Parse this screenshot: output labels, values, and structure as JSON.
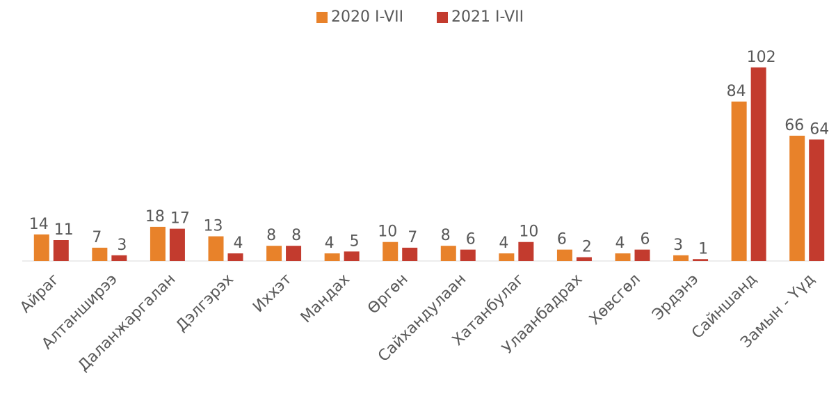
{
  "chart_data": {
    "type": "bar",
    "categories": [
      "Айраг",
      "Алтанширээ",
      "Даланжаргалан",
      "Дэлгэрэх",
      "Иххэт",
      "Мандах",
      "Өргөн",
      "Сайхандулаан",
      "Хатанбулаг",
      "Улаанбадрах",
      "Хөвсгөл",
      "Эрдэнэ",
      "Сайншанд",
      "Замын - Үүд"
    ],
    "series": [
      {
        "name": "2020 I-VII",
        "color": "#e8822a",
        "values": [
          14,
          7,
          18,
          13,
          8,
          4,
          10,
          8,
          4,
          6,
          4,
          3,
          84,
          66
        ]
      },
      {
        "name": "2021 I-VII",
        "color": "#c33b2e",
        "values": [
          11,
          3,
          17,
          4,
          8,
          5,
          7,
          6,
          10,
          2,
          6,
          1,
          102,
          64
        ]
      }
    ],
    "ylim": [
      0,
      110
    ],
    "legend": "top"
  }
}
